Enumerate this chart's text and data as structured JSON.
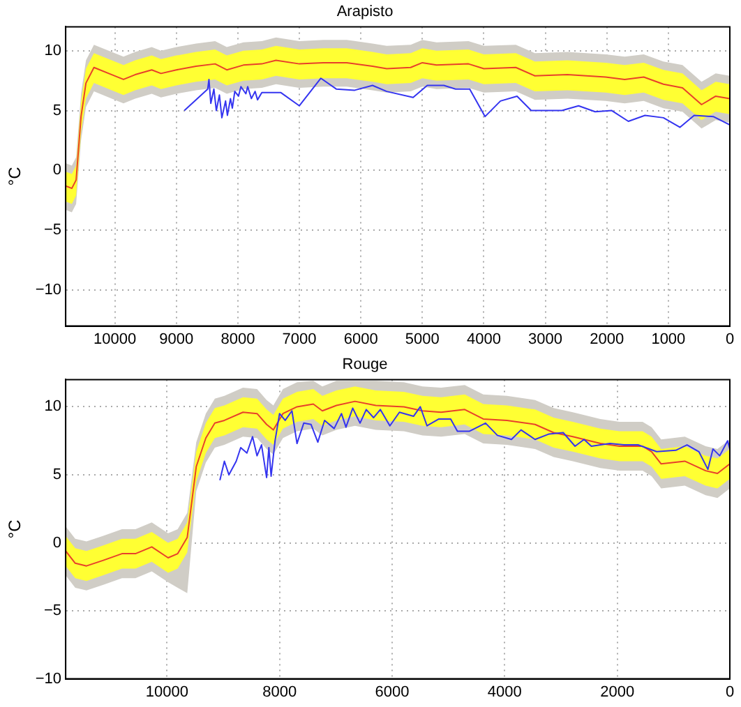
{
  "chart_data": [
    {
      "type": "line",
      "title": "Arapisto",
      "ylabel": "°C",
      "xlim": [
        10800,
        0
      ],
      "ylim": [
        -13,
        12
      ],
      "xticks": [
        10000,
        9000,
        8000,
        7000,
        6000,
        5000,
        4000,
        3000,
        2000,
        1000,
        0
      ],
      "yticks": [
        -10,
        -5,
        0,
        5,
        10
      ],
      "grid": true,
      "legend": false,
      "marker": "none",
      "line_style": "solid",
      "series": [
        {
          "color": "#d0cdc6",
          "x": [
            10800,
            10700,
            10630,
            10550,
            10470,
            10340,
            10050,
            9860,
            9670,
            9400,
            9250,
            9000,
            8680,
            8370,
            8180,
            7910,
            7610,
            7380,
            7000,
            6610,
            6230,
            5810,
            5580,
            5190,
            5000,
            4770,
            4250,
            4000,
            3480,
            3170,
            2640,
            2020,
            1710,
            1400,
            1080,
            770,
            460,
            230,
            0
          ],
          "values": [
            null,
            null,
            null,
            null,
            null,
            null,
            null,
            null,
            null,
            null,
            null,
            null,
            null,
            null,
            null,
            null,
            null,
            null,
            null,
            null,
            null,
            null,
            null,
            null,
            null,
            null,
            null,
            null,
            null,
            null,
            null,
            null,
            null,
            null,
            null,
            null,
            null,
            null,
            null
          ],
          "upper": [
            0.6,
            0.4,
            1.1,
            6.4,
            9.2,
            10.5,
            9.9,
            9.5,
            9.9,
            10.3,
            10.0,
            10.3,
            10.6,
            10.8,
            10.3,
            10.7,
            10.8,
            11.1,
            10.8,
            10.9,
            10.9,
            10.6,
            10.4,
            10.5,
            10.9,
            10.7,
            10.8,
            10.4,
            10.5,
            9.8,
            9.9,
            9.7,
            9.5,
            9.7,
            9.1,
            8.8,
            7.4,
            8.1,
            7.9
          ],
          "lower": [
            -3.3,
            -3.5,
            -2.8,
            2.5,
            5.3,
            6.6,
            6.0,
            5.6,
            6.0,
            6.4,
            6.1,
            6.4,
            6.7,
            6.9,
            6.4,
            6.8,
            6.9,
            7.2,
            6.9,
            7.0,
            7.0,
            6.7,
            6.5,
            6.6,
            7.0,
            6.8,
            6.9,
            6.5,
            6.6,
            5.9,
            6.0,
            5.8,
            5.6,
            5.8,
            5.2,
            4.9,
            3.5,
            4.2,
            4.0
          ]
        },
        {
          "color": "#ffff33",
          "x": [
            10800,
            10700,
            10630,
            10550,
            10470,
            10340,
            10050,
            9860,
            9670,
            9400,
            9250,
            9000,
            8680,
            8370,
            8180,
            7910,
            7610,
            7380,
            7000,
            6610,
            6230,
            5810,
            5580,
            5190,
            5000,
            4770,
            4250,
            4000,
            3480,
            3170,
            2640,
            2020,
            1710,
            1400,
            1080,
            770,
            460,
            230,
            0
          ],
          "values": [
            null,
            null,
            null,
            null,
            null,
            null,
            null,
            null,
            null,
            null,
            null,
            null,
            null,
            null,
            null,
            null,
            null,
            null,
            null,
            null,
            null,
            null,
            null,
            null,
            null,
            null,
            null,
            null,
            null,
            null,
            null,
            null,
            null,
            null,
            null,
            null,
            null,
            null,
            null
          ],
          "upper": [
            -0.1,
            -0.3,
            0.4,
            5.7,
            8.5,
            9.8,
            9.2,
            8.8,
            9.2,
            9.6,
            9.3,
            9.6,
            9.9,
            10.1,
            9.6,
            10.0,
            10.1,
            10.4,
            10.1,
            10.2,
            10.2,
            9.9,
            9.7,
            9.8,
            10.2,
            10.0,
            10.1,
            9.7,
            9.8,
            9.1,
            9.2,
            9.0,
            8.8,
            9.0,
            8.4,
            8.1,
            6.7,
            7.4,
            7.2
          ],
          "lower": [
            -2.6,
            -2.8,
            -2.1,
            3.2,
            6.0,
            7.3,
            6.7,
            6.3,
            6.7,
            7.1,
            6.8,
            7.1,
            7.4,
            7.6,
            7.1,
            7.5,
            7.6,
            7.9,
            7.6,
            7.7,
            7.7,
            7.4,
            7.2,
            7.3,
            7.7,
            7.5,
            7.6,
            7.2,
            7.3,
            6.6,
            6.7,
            6.5,
            6.3,
            6.5,
            5.9,
            5.6,
            4.2,
            4.9,
            4.7
          ]
        },
        {
          "color": "#e8402a",
          "x": [
            10800,
            10700,
            10630,
            10550,
            10470,
            10340,
            10050,
            9860,
            9670,
            9400,
            9250,
            9000,
            8680,
            8370,
            8180,
            7910,
            7610,
            7380,
            7000,
            6610,
            6230,
            5810,
            5580,
            5190,
            5000,
            4770,
            4250,
            4000,
            3480,
            3170,
            2640,
            2020,
            1710,
            1400,
            1080,
            770,
            460,
            230,
            0
          ],
          "values": [
            -1.3,
            -1.5,
            -0.8,
            4.5,
            7.3,
            8.6,
            8.0,
            7.6,
            8.0,
            8.4,
            8.1,
            8.4,
            8.7,
            8.9,
            8.4,
            8.8,
            8.9,
            9.2,
            8.9,
            9.0,
            9.0,
            8.7,
            8.5,
            8.6,
            9.0,
            8.8,
            8.9,
            8.5,
            8.6,
            7.9,
            8.0,
            7.8,
            7.6,
            7.8,
            7.2,
            6.9,
            5.5,
            6.2,
            6.0
          ]
        },
        {
          "color": "#3434f0",
          "x": [
            8870,
            8490,
            8470,
            8440,
            8390,
            8350,
            8300,
            8260,
            8200,
            8170,
            8120,
            8090,
            8050,
            7990,
            7950,
            7870,
            7840,
            7780,
            7720,
            7680,
            7610,
            7300,
            7000,
            6650,
            6400,
            6100,
            5810,
            5580,
            5150,
            4920,
            4650,
            4460,
            4230,
            3980,
            3730,
            3460,
            3230,
            2730,
            2460,
            2190,
            1920,
            1650,
            1380,
            1080,
            810,
            580,
            270,
            0
          ],
          "values": [
            5.0,
            6.8,
            7.6,
            5.6,
            6.8,
            5.0,
            6.3,
            4.4,
            5.8,
            4.6,
            6.0,
            5.2,
            6.6,
            6.2,
            7.0,
            6.4,
            7.0,
            6.0,
            6.6,
            5.9,
            6.5,
            6.5,
            5.4,
            7.7,
            6.8,
            6.7,
            7.1,
            6.6,
            6.1,
            7.1,
            7.1,
            6.8,
            6.8,
            4.5,
            5.8,
            6.2,
            5.0,
            5.0,
            5.4,
            4.9,
            5.0,
            4.1,
            4.6,
            4.4,
            3.6,
            4.6,
            4.5,
            3.8
          ]
        }
      ]
    },
    {
      "type": "line",
      "title": "Rouge",
      "ylabel": "°C",
      "xlim": [
        11800,
        0
      ],
      "ylim": [
        -10,
        12
      ],
      "xticks": [
        10000,
        8000,
        6000,
        4000,
        2000,
        0
      ],
      "yticks": [
        -10,
        -5,
        0,
        5,
        10
      ],
      "grid": true,
      "legend": false,
      "marker": "none",
      "line_style": "solid",
      "series": [
        {
          "color": "#d0cdc6",
          "x": [
            11800,
            11630,
            11430,
            11140,
            10800,
            10560,
            10270,
            9980,
            9810,
            9640,
            9480,
            9310,
            9150,
            8980,
            8650,
            8400,
            8230,
            8110,
            7940,
            7690,
            7400,
            7240,
            6990,
            6660,
            6290,
            5790,
            5460,
            5130,
            4710,
            4380,
            3960,
            3460,
            3130,
            2790,
            2300,
            1960,
            1550,
            1390,
            1220,
            800,
            430,
            220,
            0
          ],
          "values": [
            null,
            null,
            null,
            null,
            null,
            null,
            null,
            null,
            null,
            null,
            null,
            null,
            null,
            null,
            null,
            null,
            null,
            null,
            null,
            null,
            null,
            null,
            null,
            null,
            null,
            null,
            null,
            null,
            null,
            null,
            null,
            null,
            null,
            null,
            null,
            null,
            null,
            null,
            null,
            null,
            null,
            null,
            null
          ],
          "upper": [
            1.2,
            0.3,
            0.1,
            0.5,
            1.0,
            1.0,
            1.5,
            0.7,
            1.0,
            2.2,
            7.4,
            9.5,
            10.6,
            10.8,
            11.4,
            11.3,
            10.5,
            10.1,
            11.3,
            11.8,
            11.9,
            11.5,
            11.9,
            11.9,
            11.9,
            11.8,
            11.5,
            11.4,
            11.6,
            10.9,
            10.8,
            10.5,
            9.9,
            9.6,
            9.1,
            8.9,
            8.9,
            8.5,
            7.6,
            7.8,
            7.1,
            6.9,
            7.6
          ],
          "lower": [
            -2.4,
            -3.3,
            -3.5,
            -3.1,
            -2.6,
            -2.6,
            -2.1,
            -2.9,
            -3.3,
            -3.7,
            3.8,
            5.9,
            7.0,
            7.2,
            7.8,
            7.7,
            6.9,
            6.5,
            7.7,
            8.2,
            8.4,
            7.9,
            8.3,
            8.6,
            8.3,
            8.2,
            7.9,
            7.8,
            8.0,
            7.3,
            7.2,
            6.9,
            6.3,
            6.0,
            5.5,
            5.3,
            5.3,
            4.9,
            4.0,
            4.2,
            3.5,
            3.3,
            4.0
          ]
        },
        {
          "color": "#ffff33",
          "x": [
            11800,
            11630,
            11430,
            11140,
            10800,
            10560,
            10270,
            9980,
            9810,
            9640,
            9480,
            9310,
            9150,
            8980,
            8650,
            8400,
            8230,
            8110,
            7940,
            7690,
            7400,
            7240,
            6990,
            6660,
            6290,
            5790,
            5460,
            5130,
            4710,
            4380,
            3960,
            3460,
            3130,
            2790,
            2300,
            1960,
            1550,
            1390,
            1220,
            800,
            430,
            220,
            0
          ],
          "values": [
            null,
            null,
            null,
            null,
            null,
            null,
            null,
            null,
            null,
            null,
            null,
            null,
            null,
            null,
            null,
            null,
            null,
            null,
            null,
            null,
            null,
            null,
            null,
            null,
            null,
            null,
            null,
            null,
            null,
            null,
            null,
            null,
            null,
            null,
            null,
            null,
            null,
            null,
            null,
            null,
            null,
            null,
            null
          ],
          "upper": [
            0.5,
            -0.4,
            -0.6,
            -0.2,
            0.3,
            0.3,
            0.8,
            0.0,
            0.3,
            1.5,
            6.7,
            8.8,
            9.9,
            10.1,
            10.7,
            10.6,
            9.8,
            9.4,
            10.6,
            11.1,
            11.3,
            10.8,
            11.2,
            11.5,
            11.2,
            11.1,
            10.8,
            10.7,
            10.9,
            10.2,
            10.1,
            9.8,
            9.2,
            8.9,
            8.4,
            8.2,
            8.2,
            7.8,
            6.9,
            7.1,
            6.4,
            6.2,
            6.9
          ],
          "lower": [
            -1.7,
            -2.6,
            -2.8,
            -2.4,
            -1.9,
            -1.9,
            -1.4,
            -2.2,
            -1.9,
            -0.7,
            4.5,
            6.6,
            7.7,
            7.9,
            8.5,
            8.4,
            7.6,
            7.2,
            8.4,
            8.9,
            9.1,
            8.6,
            9.0,
            9.3,
            9.0,
            8.9,
            8.6,
            8.5,
            8.7,
            8.0,
            7.9,
            7.6,
            7.0,
            6.7,
            6.2,
            6.0,
            6.0,
            5.6,
            4.7,
            4.9,
            4.2,
            4.0,
            4.7
          ]
        },
        {
          "color": "#e8402a",
          "x": [
            11800,
            11630,
            11430,
            11140,
            10800,
            10560,
            10270,
            9980,
            9810,
            9640,
            9480,
            9310,
            9150,
            8980,
            8650,
            8400,
            8230,
            8110,
            7940,
            7690,
            7400,
            7240,
            6990,
            6660,
            6290,
            5790,
            5460,
            5130,
            4710,
            4380,
            3960,
            3460,
            3130,
            2790,
            2300,
            1960,
            1550,
            1390,
            1220,
            800,
            430,
            220,
            0
          ],
          "values": [
            -0.6,
            -1.5,
            -1.7,
            -1.3,
            -0.8,
            -0.8,
            -0.3,
            -1.1,
            -0.8,
            0.4,
            5.6,
            7.7,
            8.8,
            9.0,
            9.6,
            9.5,
            8.7,
            8.3,
            9.5,
            10.0,
            10.2,
            9.7,
            10.1,
            10.4,
            10.1,
            10.0,
            9.7,
            9.6,
            9.8,
            9.1,
            9.0,
            8.7,
            8.1,
            7.8,
            7.3,
            7.1,
            7.1,
            6.7,
            5.8,
            6.0,
            5.3,
            5.1,
            5.8
          ]
        },
        {
          "color": "#3434f0",
          "x": [
            9060,
            8980,
            8900,
            8770,
            8690,
            8580,
            8480,
            8400,
            8320,
            8230,
            8190,
            8150,
            8080,
            8000,
            7900,
            7780,
            7690,
            7570,
            7440,
            7320,
            7200,
            7030,
            6900,
            6820,
            6700,
            6570,
            6460,
            6330,
            6210,
            6040,
            5870,
            5620,
            5500,
            5380,
            5170,
            4960,
            4840,
            4630,
            4340,
            4130,
            3880,
            3710,
            3460,
            3210,
            2960,
            2750,
            2590,
            2460,
            2130,
            1880,
            1630,
            1300,
            960,
            760,
            550,
            390,
            300,
            180,
            40,
            0
          ],
          "values": [
            4.6,
            6.0,
            5.0,
            6.0,
            7.0,
            6.6,
            7.8,
            6.4,
            7.2,
            4.8,
            7.0,
            4.9,
            7.5,
            9.5,
            9.0,
            9.7,
            7.3,
            8.8,
            8.7,
            7.4,
            9.0,
            8.4,
            9.5,
            8.5,
            9.9,
            8.8,
            9.8,
            9.2,
            9.8,
            8.6,
            9.6,
            9.3,
            10.0,
            8.6,
            9.1,
            9.1,
            8.2,
            8.2,
            8.8,
            7.9,
            7.6,
            8.3,
            7.6,
            8.0,
            8.1,
            7.1,
            7.6,
            7.1,
            7.3,
            7.2,
            7.2,
            6.7,
            6.8,
            7.2,
            6.7,
            5.4,
            6.9,
            6.4,
            7.5,
            6.9
          ]
        }
      ]
    }
  ]
}
